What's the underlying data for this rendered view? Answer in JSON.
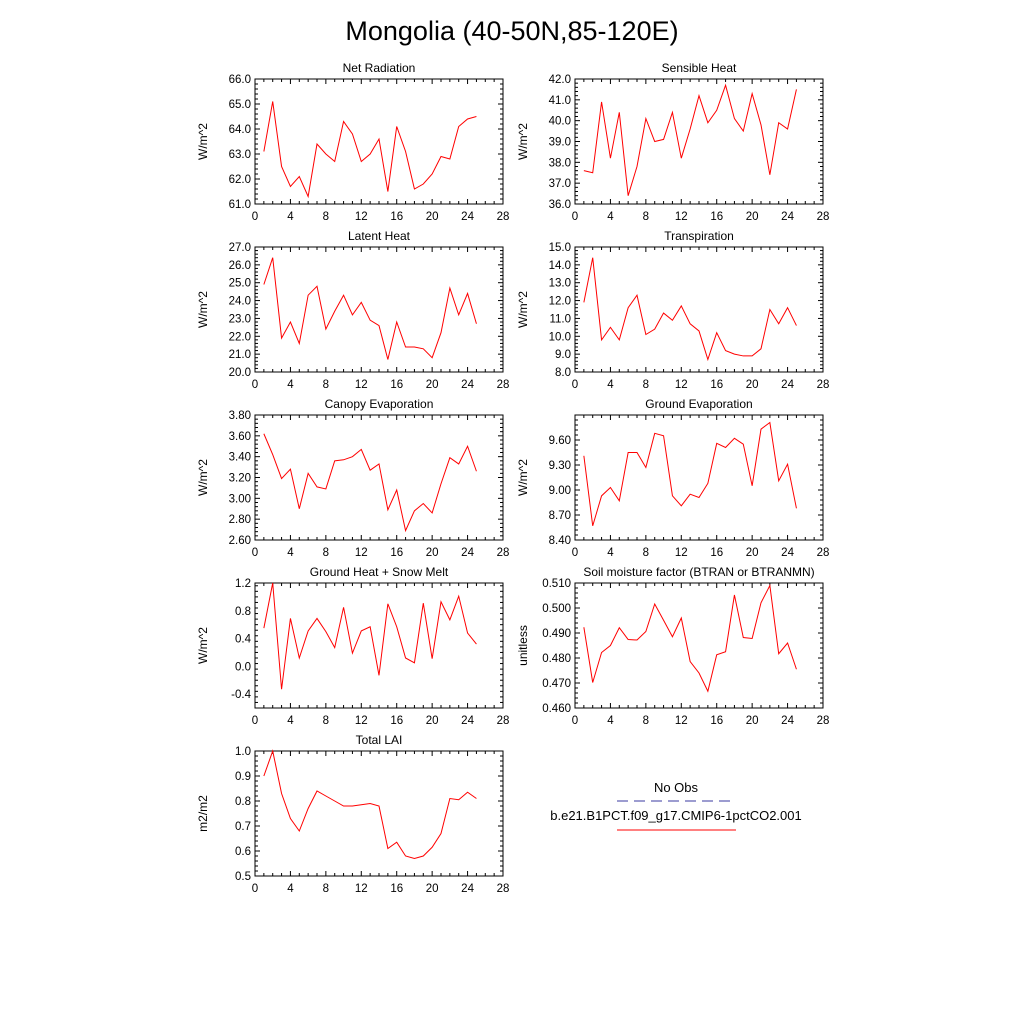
{
  "figure": {
    "title": "Mongolia (40-50N,85-120E)"
  },
  "chart_data": [
    {
      "type": "line",
      "title": "Net Radiation",
      "ylabel": "W/m^2",
      "xlim": [
        0,
        28
      ],
      "ylim": [
        61.0,
        66.0
      ],
      "xticks": [
        0,
        4,
        8,
        12,
        16,
        20,
        24,
        28
      ],
      "yticks": [
        61.0,
        62.0,
        63.0,
        64.0,
        65.0,
        66.0
      ],
      "ytick_labels": [
        "61.0",
        "62.0",
        "63.0",
        "64.0",
        "65.0",
        "66.0"
      ],
      "series": [
        {
          "color": "#ff0000",
          "x": [
            1,
            2,
            3,
            4,
            5,
            6,
            7,
            8,
            9,
            10,
            11,
            12,
            13,
            14,
            15,
            16,
            17,
            18,
            19,
            20,
            21,
            22,
            23,
            24,
            25
          ],
          "y": [
            63.1,
            65.1,
            62.5,
            61.7,
            62.1,
            61.3,
            63.4,
            63.0,
            62.7,
            64.3,
            63.8,
            62.7,
            63.0,
            63.6,
            61.5,
            64.1,
            63.1,
            61.6,
            61.8,
            62.2,
            62.9,
            62.8,
            64.1,
            64.4,
            64.5
          ]
        }
      ]
    },
    {
      "type": "line",
      "title": "Sensible Heat",
      "ylabel": "W/m^2",
      "xlim": [
        0,
        28
      ],
      "ylim": [
        36.0,
        42.0
      ],
      "xticks": [
        0,
        4,
        8,
        12,
        16,
        20,
        24,
        28
      ],
      "yticks": [
        36.0,
        37.0,
        38.0,
        39.0,
        40.0,
        41.0,
        42.0
      ],
      "ytick_labels": [
        "36.0",
        "37.0",
        "38.0",
        "39.0",
        "40.0",
        "41.0",
        "42.0"
      ],
      "series": [
        {
          "color": "#ff0000",
          "x": [
            1,
            2,
            3,
            4,
            5,
            6,
            7,
            8,
            9,
            10,
            11,
            12,
            13,
            14,
            15,
            16,
            17,
            18,
            19,
            20,
            21,
            22,
            23,
            24,
            25
          ],
          "y": [
            37.6,
            37.5,
            40.9,
            38.2,
            40.4,
            36.4,
            37.8,
            40.1,
            39.0,
            39.1,
            40.4,
            38.2,
            39.6,
            41.2,
            39.9,
            40.5,
            41.7,
            40.1,
            39.5,
            41.3,
            39.8,
            37.4,
            39.9,
            39.6,
            41.5
          ]
        }
      ]
    },
    {
      "type": "line",
      "title": "Latent Heat",
      "ylabel": "W/m^2",
      "xlim": [
        0,
        28
      ],
      "ylim": [
        20.0,
        27.0
      ],
      "xticks": [
        0,
        4,
        8,
        12,
        16,
        20,
        24,
        28
      ],
      "yticks": [
        20.0,
        21.0,
        22.0,
        23.0,
        24.0,
        25.0,
        26.0,
        27.0
      ],
      "ytick_labels": [
        "20.0",
        "21.0",
        "22.0",
        "23.0",
        "24.0",
        "25.0",
        "26.0",
        "27.0"
      ],
      "series": [
        {
          "color": "#ff0000",
          "x": [
            1,
            2,
            3,
            4,
            5,
            6,
            7,
            8,
            9,
            10,
            11,
            12,
            13,
            14,
            15,
            16,
            17,
            18,
            19,
            20,
            21,
            22,
            23,
            24,
            25
          ],
          "y": [
            24.9,
            26.4,
            21.9,
            22.8,
            21.6,
            24.3,
            24.8,
            22.4,
            23.4,
            24.3,
            23.2,
            23.9,
            22.9,
            22.6,
            20.7,
            22.8,
            21.4,
            21.4,
            21.3,
            20.8,
            22.2,
            24.7,
            23.2,
            24.4,
            22.7
          ]
        }
      ]
    },
    {
      "type": "line",
      "title": "Transpiration",
      "ylabel": "W/m^2",
      "xlim": [
        0,
        28
      ],
      "ylim": [
        8.0,
        15.0
      ],
      "xticks": [
        0,
        4,
        8,
        12,
        16,
        20,
        24,
        28
      ],
      "yticks": [
        8.0,
        9.0,
        10.0,
        11.0,
        12.0,
        13.0,
        14.0,
        15.0
      ],
      "ytick_labels": [
        "8.0",
        "9.0",
        "10.0",
        "11.0",
        "12.0",
        "13.0",
        "14.0",
        "15.0"
      ],
      "series": [
        {
          "color": "#ff0000",
          "x": [
            1,
            2,
            3,
            4,
            5,
            6,
            7,
            8,
            9,
            10,
            11,
            12,
            13,
            14,
            15,
            16,
            17,
            18,
            19,
            20,
            21,
            22,
            23,
            24,
            25
          ],
          "y": [
            11.9,
            14.4,
            9.8,
            10.5,
            9.8,
            11.6,
            12.3,
            10.1,
            10.4,
            11.3,
            10.9,
            11.7,
            10.7,
            10.3,
            8.7,
            10.2,
            9.2,
            9.0,
            8.9,
            8.9,
            9.3,
            11.5,
            10.7,
            11.6,
            10.6
          ]
        }
      ]
    },
    {
      "type": "line",
      "title": "Canopy Evaporation",
      "ylabel": "W/m^2",
      "xlim": [
        0,
        28
      ],
      "ylim": [
        2.6,
        3.8
      ],
      "xticks": [
        0,
        4,
        8,
        12,
        16,
        20,
        24,
        28
      ],
      "yticks": [
        2.6,
        2.8,
        3.0,
        3.2,
        3.4,
        3.6,
        3.8
      ],
      "ytick_labels": [
        "2.60",
        "2.80",
        "3.00",
        "3.20",
        "3.40",
        "3.60",
        "3.80"
      ],
      "series": [
        {
          "color": "#ff0000",
          "x": [
            1,
            2,
            3,
            4,
            5,
            6,
            7,
            8,
            9,
            10,
            11,
            12,
            13,
            14,
            15,
            16,
            17,
            18,
            19,
            20,
            21,
            22,
            23,
            24,
            25
          ],
          "y": [
            3.62,
            3.42,
            3.19,
            3.28,
            2.9,
            3.24,
            3.11,
            3.09,
            3.36,
            3.37,
            3.4,
            3.47,
            3.27,
            3.33,
            2.89,
            3.08,
            2.69,
            2.88,
            2.95,
            2.86,
            3.14,
            3.39,
            3.33,
            3.5,
            3.26
          ]
        }
      ]
    },
    {
      "type": "line",
      "title": "Ground Evaporation",
      "ylabel": "W/m^2",
      "xlim": [
        0,
        28
      ],
      "ylim": [
        8.4,
        9.9
      ],
      "xticks": [
        0,
        4,
        8,
        12,
        16,
        20,
        24,
        28
      ],
      "yticks": [
        8.4,
        8.7,
        9.0,
        9.3,
        9.6
      ],
      "ytick_labels": [
        "8.40",
        "8.70",
        "9.00",
        "9.30",
        "9.60"
      ],
      "series": [
        {
          "color": "#ff0000",
          "x": [
            1,
            2,
            3,
            4,
            5,
            6,
            7,
            8,
            9,
            10,
            11,
            12,
            13,
            14,
            15,
            16,
            17,
            18,
            19,
            20,
            21,
            22,
            23,
            24,
            25
          ],
          "y": [
            9.41,
            8.57,
            8.93,
            9.03,
            8.87,
            9.45,
            9.45,
            9.27,
            9.68,
            9.65,
            8.93,
            8.81,
            8.95,
            8.91,
            9.08,
            9.56,
            9.51,
            9.62,
            9.55,
            9.05,
            9.73,
            9.81,
            9.11,
            9.31,
            8.78
          ]
        }
      ]
    },
    {
      "type": "line",
      "title": "Ground Heat + Snow Melt",
      "ylabel": "W/m^2",
      "xlim": [
        0,
        28
      ],
      "ylim": [
        -0.6,
        1.2
      ],
      "xticks": [
        0,
        4,
        8,
        12,
        16,
        20,
        24,
        28
      ],
      "yticks": [
        -0.4,
        0.0,
        0.4,
        0.8,
        1.2
      ],
      "ytick_labels": [
        "-0.4",
        "0.0",
        "0.4",
        "0.8",
        "1.2"
      ],
      "series": [
        {
          "color": "#ff0000",
          "x": [
            1,
            2,
            3,
            4,
            5,
            6,
            7,
            8,
            9,
            10,
            11,
            12,
            13,
            14,
            15,
            16,
            17,
            18,
            19,
            20,
            21,
            22,
            23,
            24,
            25
          ],
          "y": [
            0.55,
            1.2,
            -0.33,
            0.69,
            0.12,
            0.51,
            0.69,
            0.5,
            0.27,
            0.85,
            0.19,
            0.51,
            0.57,
            -0.13,
            0.9,
            0.57,
            0.12,
            0.05,
            0.91,
            0.11,
            0.93,
            0.67,
            1.01,
            0.48,
            0.32
          ]
        }
      ]
    },
    {
      "type": "line",
      "title": "Soil moisture factor (BTRAN or BTRANMN)",
      "ylabel": "unitless",
      "xlim": [
        0,
        28
      ],
      "ylim": [
        0.46,
        0.51
      ],
      "xticks": [
        0,
        4,
        8,
        12,
        16,
        20,
        24,
        28
      ],
      "yticks": [
        0.46,
        0.47,
        0.48,
        0.49,
        0.5,
        0.51
      ],
      "ytick_labels": [
        "0.460",
        "0.470",
        "0.480",
        "0.490",
        "0.500",
        "0.510"
      ],
      "series": [
        {
          "color": "#ff0000",
          "x": [
            1,
            2,
            3,
            4,
            5,
            6,
            7,
            8,
            9,
            10,
            11,
            12,
            13,
            14,
            15,
            16,
            17,
            18,
            19,
            20,
            21,
            22,
            23,
            24,
            25
          ],
          "y": [
            0.4923,
            0.4702,
            0.4822,
            0.485,
            0.4921,
            0.4874,
            0.4872,
            0.4906,
            0.5016,
            0.4951,
            0.4885,
            0.496,
            0.4786,
            0.474,
            0.4667,
            0.4813,
            0.4825,
            0.5052,
            0.4882,
            0.4878,
            0.5021,
            0.509,
            0.4817,
            0.486,
            0.4755
          ]
        }
      ]
    },
    {
      "type": "line",
      "title": "Total LAI",
      "ylabel": "m2/m2",
      "xlim": [
        0,
        28
      ],
      "ylim": [
        0.5,
        1.0
      ],
      "xticks": [
        0,
        4,
        8,
        12,
        16,
        20,
        24,
        28
      ],
      "yticks": [
        0.5,
        0.6,
        0.7,
        0.8,
        0.9,
        1.0
      ],
      "ytick_labels": [
        "0.5",
        "0.6",
        "0.7",
        "0.8",
        "0.9",
        "1.0"
      ],
      "series": [
        {
          "color": "#ff0000",
          "x": [
            1,
            2,
            3,
            4,
            5,
            6,
            7,
            8,
            9,
            10,
            11,
            12,
            13,
            14,
            15,
            16,
            17,
            18,
            19,
            20,
            21,
            22,
            23,
            24,
            25
          ],
          "y": [
            0.9,
            1.0,
            0.83,
            0.73,
            0.68,
            0.77,
            0.84,
            0.82,
            0.8,
            0.78,
            0.78,
            0.785,
            0.79,
            0.78,
            0.61,
            0.635,
            0.58,
            0.57,
            0.58,
            0.615,
            0.67,
            0.81,
            0.805,
            0.835,
            0.81
          ]
        }
      ]
    }
  ],
  "legend": {
    "items": [
      {
        "label": "No Obs",
        "color": "#3a3aa0",
        "style": "dashed"
      },
      {
        "label": "b.e21.B1PCT.f09_g17.CMIP6-1pctCO2.001",
        "color": "#ff0000",
        "style": "solid"
      }
    ]
  }
}
